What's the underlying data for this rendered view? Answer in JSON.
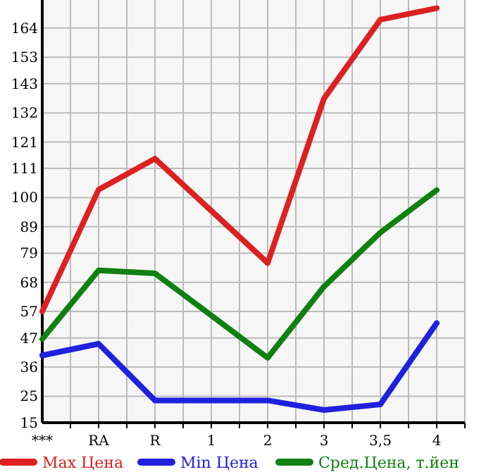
{
  "chart_data": {
    "type": "line",
    "categories": [
      "***",
      "RA",
      "R",
      "1",
      "2",
      "3",
      "3,5",
      "4"
    ],
    "series": [
      {
        "name": "Max Цена",
        "color": "#dd2020",
        "values": [
          57,
          103,
          114.7,
          95,
          75.3,
          137.4,
          167.2,
          171.5
        ]
      },
      {
        "name": "Min Цена",
        "color": "#2020dd",
        "values": [
          40.4,
          44.8,
          23.4,
          23.4,
          23.4,
          19.8,
          21.9,
          52.6
        ]
      },
      {
        "name": "Сред.Цена, т.йен",
        "color": "#108010",
        "values": [
          46.6,
          72.5,
          71.4,
          55.5,
          39.5,
          66.4,
          86.8,
          102.8
        ]
      }
    ],
    "ylim": [
      15,
      174.6
    ],
    "yticks": [
      15,
      25,
      36,
      47,
      57,
      68,
      79,
      89,
      100,
      111,
      121,
      132,
      143,
      153,
      164
    ],
    "grid": true,
    "legend": "bottom",
    "marker": "none",
    "line_style": "solid"
  }
}
